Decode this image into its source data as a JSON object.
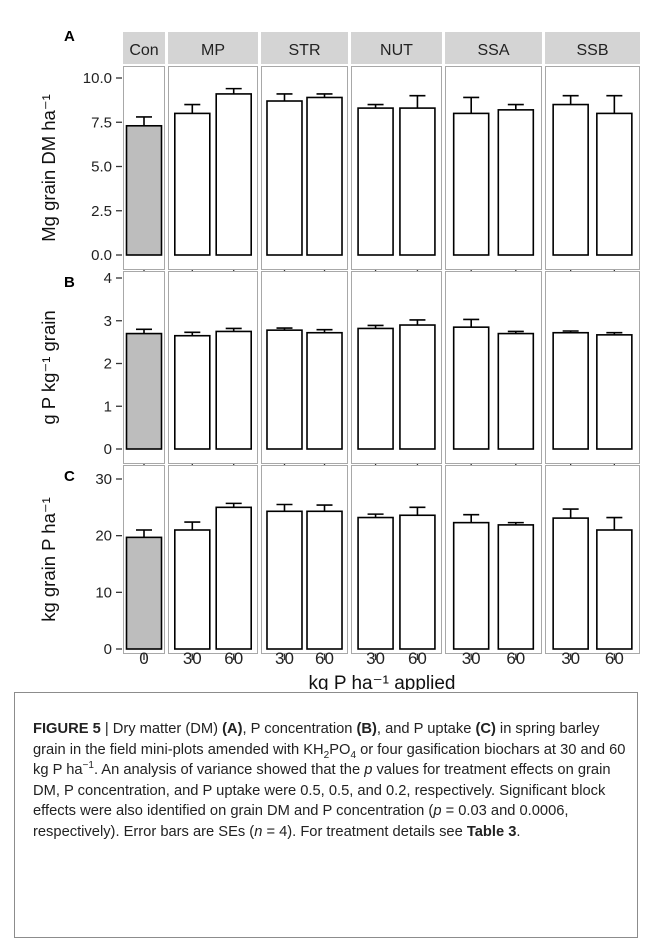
{
  "chart_data": {
    "type": "bar",
    "facet_groups": [
      "Con",
      "MP",
      "STR",
      "NUT",
      "SSA",
      "SSB"
    ],
    "facet_categories": [
      [
        "0"
      ],
      [
        "30",
        "60"
      ],
      [
        "30",
        "60"
      ],
      [
        "30",
        "60"
      ],
      [
        "30",
        "60"
      ],
      [
        "30",
        "60"
      ]
    ],
    "x_tick_labels": [
      "0",
      "30",
      "60",
      "30",
      "60",
      "30",
      "60",
      "30",
      "60",
      "30",
      "60"
    ],
    "bar_colors": [
      "#bdbdbd",
      "#ffffff",
      "#ffffff",
      "#ffffff",
      "#ffffff",
      "#ffffff",
      "#ffffff",
      "#ffffff",
      "#ffffff",
      "#ffffff",
      "#ffffff"
    ],
    "xlabel": "kg P ha⁻¹ applied",
    "grid": false,
    "legend": "none",
    "panels": [
      {
        "letter": "A",
        "ylabel": "Mg grain DM ha⁻¹",
        "ylim": [
          0,
          10
        ],
        "y_ticks": [
          "0.0",
          "2.5",
          "5.0",
          "7.5",
          "10.0"
        ],
        "y_tick_values": [
          0,
          2.5,
          5,
          7.5,
          10
        ],
        "values": [
          7.3,
          8.0,
          9.1,
          8.7,
          8.9,
          8.3,
          8.3,
          8.0,
          8.2,
          8.5,
          8.0
        ],
        "errors": [
          0.5,
          0.5,
          0.3,
          0.4,
          0.2,
          0.2,
          0.7,
          0.9,
          0.3,
          0.5,
          1.0
        ]
      },
      {
        "letter": "B",
        "ylabel": "g P kg⁻¹ grain",
        "ylim": [
          0,
          4
        ],
        "y_ticks": [
          "0",
          "1",
          "2",
          "3",
          "4"
        ],
        "y_tick_values": [
          0,
          1,
          2,
          3,
          4
        ],
        "values": [
          2.7,
          2.65,
          2.75,
          2.78,
          2.72,
          2.82,
          2.9,
          2.85,
          2.7,
          2.72,
          2.67
        ],
        "errors": [
          0.1,
          0.08,
          0.07,
          0.05,
          0.07,
          0.07,
          0.12,
          0.18,
          0.05,
          0.04,
          0.05
        ]
      },
      {
        "letter": "C",
        "ylabel": "kg grain P ha⁻¹",
        "ylim": [
          0,
          30
        ],
        "y_ticks": [
          "0",
          "10",
          "20",
          "30"
        ],
        "y_tick_values": [
          0,
          10,
          20,
          30
        ],
        "values": [
          19.7,
          21.0,
          25.0,
          24.3,
          24.3,
          23.2,
          23.6,
          22.3,
          21.9,
          23.1,
          21.0
        ],
        "errors": [
          1.3,
          1.4,
          0.7,
          1.2,
          1.1,
          0.6,
          1.4,
          1.4,
          0.4,
          1.6,
          2.2
        ]
      }
    ]
  },
  "caption": {
    "label": "FIGURE 5",
    "separator": " | ",
    "segments": [
      {
        "t": "Dry matter (DM) ",
        "b": false
      },
      {
        "t": "(A)",
        "b": true
      },
      {
        "t": ", P concentration ",
        "b": false
      },
      {
        "t": "(B)",
        "b": true
      },
      {
        "t": ", and P uptake ",
        "b": false
      },
      {
        "t": "(C)",
        "b": true
      },
      {
        "t": " in spring barley grain in the field mini-plots amended with KH",
        "b": false
      },
      {
        "t": "2",
        "sub": true
      },
      {
        "t": "PO",
        "b": false
      },
      {
        "t": "4",
        "sub": true
      },
      {
        "t": " or four gasification biochars at 30 and 60 kg P ha",
        "b": false
      },
      {
        "t": "−1",
        "sup": true
      },
      {
        "t": ". An analysis of variance showed that the ",
        "b": false
      },
      {
        "t": "p",
        "i": true
      },
      {
        "t": " values for treatment effects on grain DM, P concentration, and P uptake were 0.5, 0.5, and 0.2, respectively. Significant block effects were also identified on grain DM and P concentration (",
        "b": false
      },
      {
        "t": "p",
        "i": true
      },
      {
        "t": " = 0.03 and 0.0006, respectively). Error bars are SEs (",
        "b": false
      },
      {
        "t": "n",
        "i": true
      },
      {
        "t": " = 4). For treatment details see ",
        "b": false
      },
      {
        "t": "Table 3",
        "b": true
      },
      {
        "t": ".",
        "b": false
      }
    ]
  }
}
